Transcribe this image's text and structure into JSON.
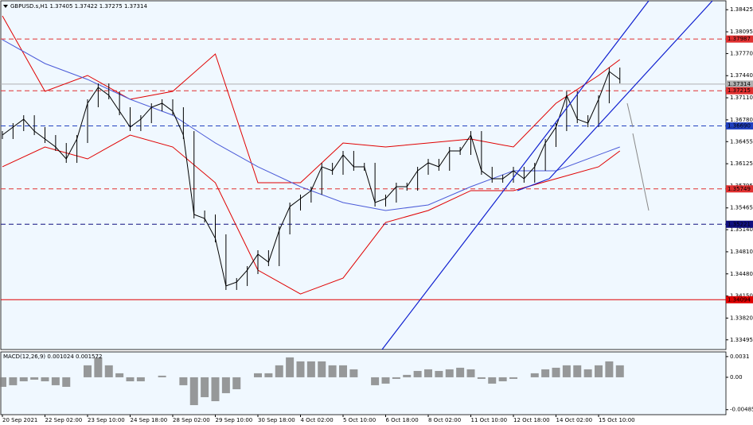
{
  "chart_data": [
    {
      "type": "price",
      "title": "GBPUSD.s,H1  1.37405 1.37422 1.37275 1.37314",
      "categories": [
        "20 Sep 2021",
        null,
        null,
        null,
        "22 Sep 02:00",
        null,
        null,
        null,
        "23 Sep 10:00",
        null,
        null,
        null,
        "24 Sep 18:00",
        null,
        null,
        null,
        "28 Sep 02:00",
        null,
        null,
        null,
        "29 Sep 10:00",
        null,
        null,
        null,
        "30 Sep 18:00",
        null,
        null,
        null,
        "4 Oct 02:00",
        null,
        null,
        null,
        "5 Oct 10:00",
        null,
        null,
        null,
        "6 Oct 18:00",
        null,
        null,
        null,
        "8 Oct 02:00",
        null,
        null,
        null,
        "11 Oct 10:00",
        null,
        null,
        null,
        "12 Oct 18:00",
        null,
        null,
        null,
        "14 Oct 02:00",
        null,
        null,
        null,
        "15 Oct 10:00",
        null,
        null
      ],
      "series": [
        {
          "color": "#000000",
          "values": [
            1.36553,
            1.36672,
            1.3679,
            1.36612,
            1.36494,
            1.36375,
            1.36197,
            1.36494,
            1.37028,
            1.37265,
            1.37146,
            1.36909,
            1.36672,
            1.3679,
            1.36968,
            1.37028,
            1.36909,
            1.36553,
            1.35367,
            1.35307,
            1.35011,
            1.34299,
            1.34358,
            1.34536,
            1.34774,
            1.34655,
            1.35129,
            1.35485,
            1.35604,
            1.35723,
            1.36079,
            1.36019,
            1.36257,
            1.36079,
            1.36079,
            1.35545,
            1.35604,
            1.35782,
            1.35782,
            1.36019,
            1.36138,
            1.36079,
            1.36316,
            1.36316,
            1.36553,
            1.36019,
            1.35901,
            1.35901,
            1.36019,
            1.35901,
            1.36079,
            1.36435,
            1.36672,
            1.37146,
            1.3679,
            1.36731,
            1.37087,
            1.37502,
            1.37384
          ]
        }
      ],
      "overlays": [
        {
          "color": "#e00000",
          "x": [
            0,
            4,
            8,
            12,
            16,
            20,
            24,
            28,
            32,
            36,
            40,
            44,
            48,
            52,
            56,
            58
          ],
          "values": [
            1.38333,
            1.37206,
            1.37443,
            1.37087,
            1.37206,
            1.37763,
            1.35841,
            1.35841,
            1.36435,
            1.36375,
            1.36435,
            1.36494,
            1.36375,
            1.37028,
            1.37443,
            1.3768
          ]
        },
        {
          "color": "#e00000",
          "x": [
            0,
            4,
            8,
            12,
            16,
            20,
            24,
            28,
            32,
            36,
            40,
            44,
            48,
            52,
            56,
            58
          ],
          "values": [
            1.36079,
            1.36375,
            1.36197,
            1.36553,
            1.36375,
            1.35841,
            1.34536,
            1.3418,
            1.34417,
            1.35248,
            1.35426,
            1.35723,
            1.35723,
            1.35901,
            1.36079,
            1.36316
          ]
        },
        {
          "color": "#4a5ad8",
          "x": [
            0,
            4,
            8,
            12,
            16,
            20,
            24,
            28,
            32,
            36,
            40,
            44,
            48,
            52,
            56,
            58
          ],
          "values": [
            1.37977,
            1.37621,
            1.37384,
            1.37087,
            1.3685,
            1.36435,
            1.36079,
            1.35782,
            1.35545,
            1.35426,
            1.35509,
            1.35782,
            1.36019,
            1.36019,
            1.36257,
            1.36375
          ]
        }
      ],
      "levels": [
        {
          "value": 1.37987,
          "label": "1.37987",
          "color": "#e03030",
          "dashed": true
        },
        {
          "value": 1.37314,
          "label": "1.37314",
          "color": "#b0b0b0",
          "dashed": false
        },
        {
          "value": 1.37215,
          "label": "1.37215",
          "color": "#e03030",
          "dashed": true
        },
        {
          "value": 1.3669,
          "label": "1.36690",
          "color": "#2040c0",
          "dashed": true
        },
        {
          "value": 1.35749,
          "label": "1.35749",
          "color": "#e03030",
          "dashed": true
        },
        {
          "value": 1.35221,
          "label": "1.35221",
          "color": "#101080",
          "dashed": true
        },
        {
          "value": 1.34094,
          "label": "1.34094",
          "color": "#e00000",
          "dashed": false
        }
      ],
      "ylim": [
        1.3335,
        1.3857
      ],
      "yticks": [
        {
          "value": 1.38425,
          "label": "1.38425"
        },
        {
          "value": 1.38095,
          "label": "1.38095"
        },
        {
          "value": 1.3777,
          "label": "1.37770"
        },
        {
          "value": 1.3744,
          "label": "1.37440"
        },
        {
          "value": 1.3711,
          "label": "1.37110"
        },
        {
          "value": 1.3678,
          "label": "1.36780"
        },
        {
          "value": 1.36455,
          "label": "1.36455"
        },
        {
          "value": 1.36125,
          "label": "1.36125"
        },
        {
          "value": 1.35795,
          "label": "1.35795"
        },
        {
          "value": 1.35465,
          "label": "1.35465"
        },
        {
          "value": 1.3514,
          "label": "1.35140"
        },
        {
          "value": 1.3481,
          "label": "1.34810"
        },
        {
          "value": 1.3448,
          "label": "1.34480"
        },
        {
          "value": 1.3415,
          "label": "1.34150"
        },
        {
          "value": 1.3382,
          "label": "1.33820"
        },
        {
          "value": 1.33495,
          "label": "1.33495"
        }
      ]
    },
    {
      "type": "macd",
      "title": "MACD(12,26,9) 0.001024 0.001572",
      "color": "#808080",
      "values": [
        -0.00143,
        -0.00119,
        -0.0006,
        -0.00036,
        -0.0006,
        -0.00119,
        -0.00143,
        0,
        0.00179,
        0.00298,
        0.00179,
        0.0006,
        -0.0006,
        -0.0006,
        0,
        0.00024,
        0,
        -0.00119,
        -0.00417,
        -0.00298,
        -0.00358,
        -0.00238,
        -0.00179,
        0,
        0.0006,
        0.0006,
        0.00179,
        0.00298,
        0.00238,
        0.00238,
        0.00238,
        0.00179,
        0.00179,
        0.00119,
        0,
        -0.00119,
        -0.00095,
        -0.00024,
        0.00036,
        0.00095,
        0.00119,
        0.00095,
        0.00119,
        0.00143,
        0.00119,
        -0.00024,
        -0.00095,
        -0.0006,
        -0.00024,
        0,
        0.0006,
        0.00119,
        0.00143,
        0.00179,
        0.00179,
        0.00119,
        0.00179,
        0.00238,
        0.00179
      ],
      "ylim": [
        -0.0056,
        0.0038
      ],
      "yticks": [
        0.0031,
        {
          "value": 0,
          "label": "0.00"
        },
        -0.004854
      ]
    }
  ]
}
